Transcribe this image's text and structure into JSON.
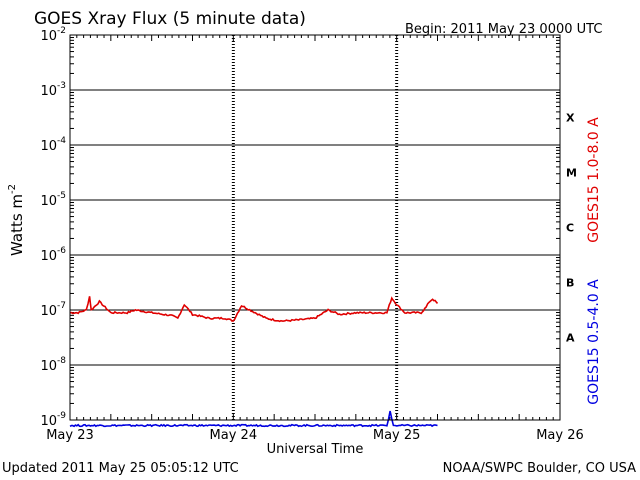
{
  "chart_data": {
    "type": "line",
    "title": "GOES Xray Flux (5 minute data)",
    "begin_label": "Begin:  2011 May 23 0000 UTC",
    "xlabel": "Universal Time",
    "ylabel_base": "Watts m",
    "ylabel_exp": "-2",
    "y_scale": "log",
    "ylim_exp": [
      -9,
      -2
    ],
    "y_ticks": [
      {
        "base": "10",
        "exp": "-2"
      },
      {
        "base": "10",
        "exp": "-3"
      },
      {
        "base": "10",
        "exp": "-4"
      },
      {
        "base": "10",
        "exp": "-5"
      },
      {
        "base": "10",
        "exp": "-6"
      },
      {
        "base": "10",
        "exp": "-7"
      },
      {
        "base": "10",
        "exp": "-8"
      },
      {
        "base": "10",
        "exp": "-9"
      }
    ],
    "x_ticks": [
      "May 23",
      "May 24",
      "May 25",
      "May 26"
    ],
    "xlim_days": [
      0,
      3
    ],
    "grid_horizontal": true,
    "flare_classes": [
      "X",
      "M",
      "C",
      "B",
      "A"
    ],
    "series": [
      {
        "name": "GOES15 1.0-8.0 A",
        "color": "#e00000",
        "x_days": [
          0.0,
          0.05,
          0.1,
          0.12,
          0.13,
          0.18,
          0.25,
          0.35,
          0.4,
          0.5,
          0.62,
          0.66,
          0.7,
          0.75,
          0.85,
          0.95,
          1.0,
          1.05,
          1.2,
          1.25,
          1.3,
          1.4,
          1.5,
          1.58,
          1.65,
          1.75,
          1.87,
          1.94,
          1.97,
          2.0,
          2.05,
          2.1,
          2.15,
          2.18,
          2.2,
          2.22,
          2.25
        ],
        "y_exp": [
          -7.05,
          -7.05,
          -7.0,
          -6.75,
          -7.0,
          -6.85,
          -7.05,
          -7.05,
          -7.0,
          -7.05,
          -7.1,
          -7.15,
          -6.9,
          -7.08,
          -7.15,
          -7.15,
          -7.2,
          -6.92,
          -7.15,
          -7.18,
          -7.2,
          -7.18,
          -7.15,
          -7.0,
          -7.08,
          -7.05,
          -7.05,
          -7.05,
          -6.78,
          -6.9,
          -7.05,
          -7.05,
          -7.05,
          -6.95,
          -6.85,
          -6.8,
          -6.88
        ]
      },
      {
        "name": "GOES15 0.5-4.0 A",
        "color": "#0000e0",
        "x_days": [
          0.0,
          0.2,
          0.55,
          1.0,
          1.2,
          1.6,
          1.8,
          1.94,
          1.96,
          1.98,
          2.0,
          2.1,
          2.25
        ],
        "y_exp": [
          -9.1,
          -9.1,
          -9.1,
          -9.1,
          -9.1,
          -9.1,
          -9.1,
          -9.1,
          -8.85,
          -9.1,
          -9.1,
          -9.1,
          -9.1
        ]
      }
    ]
  },
  "footer": {
    "updated": "Updated 2011 May 25 05:05:12 UTC",
    "credit": "NOAA/SWPC Boulder, CO USA"
  }
}
